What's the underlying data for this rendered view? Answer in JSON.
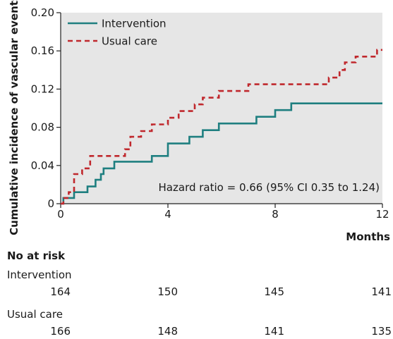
{
  "chart_data": {
    "type": "line",
    "title": "",
    "ylabel": "Cumulative incidence of vascular events",
    "xlabel": "Months",
    "xlim": [
      0,
      12
    ],
    "ylim": [
      0,
      0.2
    ],
    "xticks": [
      0,
      4,
      8,
      12
    ],
    "xtick_labels": [
      "0",
      "4",
      "8",
      "12"
    ],
    "yticks": [
      0,
      0.04,
      0.08,
      0.12,
      0.16,
      0.2
    ],
    "ytick_labels": [
      "0",
      "0.04",
      "0.08",
      "0.12",
      "0.16",
      "0.20"
    ],
    "grid": false,
    "legend": "top-left",
    "annotation": "Hazard ratio = 0.66 (95% CI 0.35 to 1.24)",
    "series": [
      {
        "name": "Intervention",
        "color": "#1f7f80",
        "style": "solid",
        "step": true,
        "x": [
          0,
          0.1,
          0.5,
          1.0,
          1.3,
          1.5,
          1.6,
          2.0,
          3.4,
          4.0,
          4.8,
          5.3,
          5.9,
          7.3,
          8.0,
          8.6,
          12.0
        ],
        "y": [
          0,
          0.006,
          0.012,
          0.018,
          0.025,
          0.031,
          0.037,
          0.044,
          0.05,
          0.063,
          0.07,
          0.077,
          0.084,
          0.091,
          0.098,
          0.105,
          0.105
        ]
      },
      {
        "name": "Usual care",
        "color": "#c0282d",
        "style": "dashed",
        "step": true,
        "x": [
          0,
          0.1,
          0.3,
          0.5,
          0.8,
          1.1,
          2.4,
          2.6,
          3.0,
          3.4,
          4.0,
          4.4,
          5.0,
          5.3,
          5.9,
          7.0,
          10.0,
          10.4,
          10.6,
          11.0,
          11.8,
          12.0
        ],
        "y": [
          0,
          0.006,
          0.012,
          0.031,
          0.037,
          0.05,
          0.057,
          0.07,
          0.076,
          0.083,
          0.09,
          0.097,
          0.104,
          0.111,
          0.118,
          0.125,
          0.132,
          0.14,
          0.148,
          0.154,
          0.161,
          0.161
        ]
      }
    ]
  },
  "risk_table": {
    "title": "No at risk",
    "groups": [
      {
        "name": "Intervention",
        "counts": [
          "164",
          "150",
          "145",
          "141"
        ]
      },
      {
        "name": "Usual care",
        "counts": [
          "166",
          "148",
          "141",
          "135"
        ]
      }
    ]
  }
}
